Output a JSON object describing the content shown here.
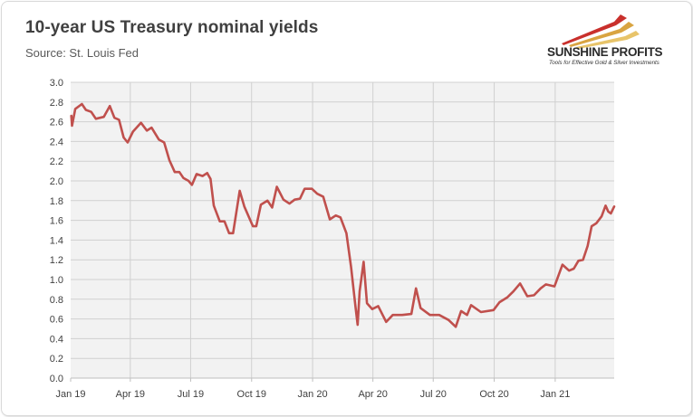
{
  "title": "10-year US Treasury nominal yields",
  "subtitle": "Source: St. Louis Fed",
  "logo": {
    "name": "SUNSHINE PROFITS",
    "tagline": "Tools for Effective Gold & Silver Investments"
  },
  "colors": {
    "line": "#c0504d",
    "plot_bg": "#f2f2f2",
    "grid": "#d0d0d0",
    "axis_text": "#404040"
  },
  "chart_data": {
    "type": "line",
    "title": "10-year US Treasury nominal yields",
    "xlabel": "",
    "ylabel": "",
    "ylim": [
      0.0,
      3.0
    ],
    "y_ticks": [
      "0.0",
      "0.2",
      "0.4",
      "0.6",
      "0.8",
      "1.0",
      "1.2",
      "1.4",
      "1.6",
      "1.8",
      "2.0",
      "2.2",
      "2.4",
      "2.6",
      "2.8",
      "3.0"
    ],
    "x_ticks": [
      "Jan 19",
      "Apr 19",
      "Jul 19",
      "Oct 19",
      "Jan 20",
      "Apr 20",
      "Jul 20",
      "Oct 20",
      "Jan 21"
    ],
    "x_range": [
      "2019-01-01",
      "2021-03-31"
    ],
    "grid": true,
    "legend": "none",
    "series": [
      {
        "values": [
          [
            "2019-01-02",
            2.66
          ],
          [
            "2019-01-03",
            2.56
          ],
          [
            "2019-01-08",
            2.73
          ],
          [
            "2019-01-18",
            2.78
          ],
          [
            "2019-01-24",
            2.72
          ],
          [
            "2019-02-01",
            2.7
          ],
          [
            "2019-02-08",
            2.63
          ],
          [
            "2019-02-20",
            2.65
          ],
          [
            "2019-03-01",
            2.76
          ],
          [
            "2019-03-08",
            2.64
          ],
          [
            "2019-03-15",
            2.62
          ],
          [
            "2019-03-22",
            2.44
          ],
          [
            "2019-03-28",
            2.39
          ],
          [
            "2019-04-05",
            2.5
          ],
          [
            "2019-04-17",
            2.59
          ],
          [
            "2019-04-26",
            2.51
          ],
          [
            "2019-05-03",
            2.54
          ],
          [
            "2019-05-14",
            2.42
          ],
          [
            "2019-05-22",
            2.39
          ],
          [
            "2019-05-30",
            2.21
          ],
          [
            "2019-06-07",
            2.09
          ],
          [
            "2019-06-14",
            2.09
          ],
          [
            "2019-06-20",
            2.03
          ],
          [
            "2019-06-28",
            2.0
          ],
          [
            "2019-07-03",
            1.96
          ],
          [
            "2019-07-10",
            2.07
          ],
          [
            "2019-07-19",
            2.05
          ],
          [
            "2019-07-26",
            2.08
          ],
          [
            "2019-07-31",
            2.02
          ],
          [
            "2019-08-05",
            1.75
          ],
          [
            "2019-08-14",
            1.59
          ],
          [
            "2019-08-21",
            1.59
          ],
          [
            "2019-08-28",
            1.47
          ],
          [
            "2019-09-03",
            1.47
          ],
          [
            "2019-09-13",
            1.9
          ],
          [
            "2019-09-20",
            1.74
          ],
          [
            "2019-10-03",
            1.54
          ],
          [
            "2019-10-08",
            1.54
          ],
          [
            "2019-10-15",
            1.76
          ],
          [
            "2019-10-25",
            1.8
          ],
          [
            "2019-11-01",
            1.73
          ],
          [
            "2019-11-08",
            1.94
          ],
          [
            "2019-11-18",
            1.81
          ],
          [
            "2019-11-27",
            1.77
          ],
          [
            "2019-12-05",
            1.81
          ],
          [
            "2019-12-13",
            1.82
          ],
          [
            "2019-12-20",
            1.92
          ],
          [
            "2019-12-31",
            1.92
          ],
          [
            "2020-01-08",
            1.87
          ],
          [
            "2020-01-17",
            1.84
          ],
          [
            "2020-01-27",
            1.61
          ],
          [
            "2020-02-05",
            1.65
          ],
          [
            "2020-02-12",
            1.63
          ],
          [
            "2020-02-21",
            1.47
          ],
          [
            "2020-02-28",
            1.13
          ],
          [
            "2020-03-06",
            0.71
          ],
          [
            "2020-03-09",
            0.54
          ],
          [
            "2020-03-12",
            0.88
          ],
          [
            "2020-03-18",
            1.18
          ],
          [
            "2020-03-23",
            0.76
          ],
          [
            "2020-03-31",
            0.7
          ],
          [
            "2020-04-09",
            0.73
          ],
          [
            "2020-04-21",
            0.57
          ],
          [
            "2020-05-01",
            0.64
          ],
          [
            "2020-05-15",
            0.64
          ],
          [
            "2020-05-29",
            0.65
          ],
          [
            "2020-06-05",
            0.91
          ],
          [
            "2020-06-12",
            0.71
          ],
          [
            "2020-06-26",
            0.64
          ],
          [
            "2020-07-10",
            0.64
          ],
          [
            "2020-07-24",
            0.59
          ],
          [
            "2020-08-04",
            0.52
          ],
          [
            "2020-08-12",
            0.68
          ],
          [
            "2020-08-21",
            0.64
          ],
          [
            "2020-08-27",
            0.74
          ],
          [
            "2020-09-11",
            0.67
          ],
          [
            "2020-09-30",
            0.69
          ],
          [
            "2020-10-09",
            0.77
          ],
          [
            "2020-10-21",
            0.82
          ],
          [
            "2020-10-30",
            0.88
          ],
          [
            "2020-11-09",
            0.96
          ],
          [
            "2020-11-20",
            0.83
          ],
          [
            "2020-11-30",
            0.84
          ],
          [
            "2020-12-10",
            0.91
          ],
          [
            "2020-12-18",
            0.95
          ],
          [
            "2020-12-31",
            0.93
          ],
          [
            "2021-01-06",
            1.04
          ],
          [
            "2021-01-12",
            1.15
          ],
          [
            "2021-01-22",
            1.09
          ],
          [
            "2021-01-29",
            1.11
          ],
          [
            "2021-02-05",
            1.19
          ],
          [
            "2021-02-12",
            1.2
          ],
          [
            "2021-02-19",
            1.34
          ],
          [
            "2021-02-25",
            1.54
          ],
          [
            "2021-03-04",
            1.57
          ],
          [
            "2021-03-12",
            1.64
          ],
          [
            "2021-03-18",
            1.75
          ],
          [
            "2021-03-22",
            1.69
          ],
          [
            "2021-03-26",
            1.67
          ],
          [
            "2021-03-31",
            1.74
          ]
        ]
      }
    ]
  }
}
